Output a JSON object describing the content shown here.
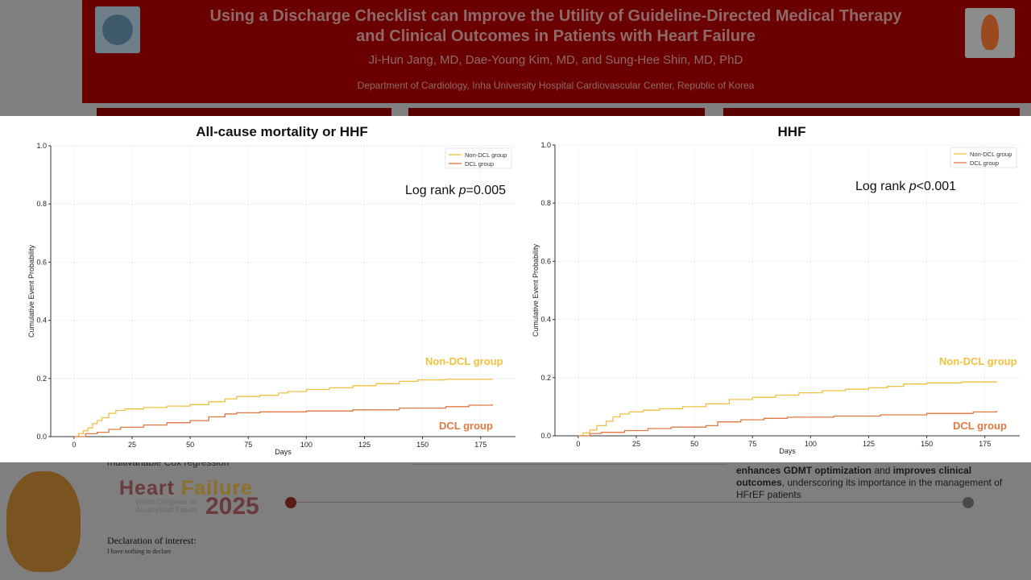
{
  "poster": {
    "title_line1": "Using a Discharge Checklist can Improve the Utility of Guideline-Directed Medical Therapy",
    "title_line2": "and Clinical Outcomes in Patients with Heart Failure",
    "authors": "Ji-Hun Jang, MD, Dae-Young Kim, MD,  and Sung-Hee Shin, MD, PhD",
    "department": "Department of Cardiology, Inha University Hospital Cardiovascular Center, Republic of Korea",
    "left_fragment": "multivariable Cox regression",
    "conclusion_b1": "enhances GDMT optimization",
    "conclusion_t1": " and ",
    "conclusion_b2": "improves clinical outcomes",
    "conclusion_t2": ", underscoring its importance in the management of HFrEF patients",
    "logo_word1": "Heart ",
    "logo_word2": "Failure",
    "logo_year": "2025",
    "logo_sub1": "World Congress on",
    "logo_sub2": "Acute Heart Failure",
    "declaration_title": "Declaration of interest:",
    "declaration_text": "I have nothing to declare",
    "colors": {
      "header": "#6b0000",
      "non_dcl": "#f0c040",
      "dcl": "#e07a40"
    }
  },
  "chart_data": [
    {
      "type": "line",
      "title": "All-cause mortality or HHF",
      "xlabel": "Days",
      "ylabel": "Cumulative Event Probability",
      "xlim": [
        -10,
        190
      ],
      "ylim": [
        0,
        1.0
      ],
      "xticks": [
        "0",
        "25",
        "50",
        "75",
        "100",
        "125",
        "150",
        "175"
      ],
      "yticks": [
        "0.0",
        "0.2",
        "0.4",
        "0.6",
        "0.8",
        "1.0"
      ],
      "grid": true,
      "legend": "top-right",
      "annotation_prefix": "Log rank ",
      "annotation_p": "p",
      "annotation_value": "=0.005",
      "series": [
        {
          "name": "Non-DCL group",
          "label": "Non-DCL group",
          "color": "#f0c040",
          "points": [
            [
              0,
              0
            ],
            [
              2,
              0.01
            ],
            [
              4,
              0.02
            ],
            [
              6,
              0.03
            ],
            [
              8,
              0.045
            ],
            [
              10,
              0.055
            ],
            [
              12,
              0.065
            ],
            [
              15,
              0.08
            ],
            [
              18,
              0.09
            ],
            [
              22,
              0.095
            ],
            [
              30,
              0.1
            ],
            [
              40,
              0.105
            ],
            [
              50,
              0.11
            ],
            [
              58,
              0.12
            ],
            [
              65,
              0.13
            ],
            [
              70,
              0.138
            ],
            [
              80,
              0.142
            ],
            [
              88,
              0.15
            ],
            [
              92,
              0.155
            ],
            [
              100,
              0.162
            ],
            [
              110,
              0.168
            ],
            [
              120,
              0.175
            ],
            [
              130,
              0.182
            ],
            [
              140,
              0.19
            ],
            [
              148,
              0.195
            ],
            [
              160,
              0.197
            ],
            [
              180,
              0.198
            ]
          ]
        },
        {
          "name": "DCL group",
          "label": "DCL group",
          "color": "#e07a40",
          "points": [
            [
              0,
              0
            ],
            [
              5,
              0.01
            ],
            [
              10,
              0.015
            ],
            [
              15,
              0.025
            ],
            [
              20,
              0.032
            ],
            [
              30,
              0.04
            ],
            [
              40,
              0.048
            ],
            [
              50,
              0.055
            ],
            [
              58,
              0.068
            ],
            [
              65,
              0.078
            ],
            [
              70,
              0.082
            ],
            [
              80,
              0.085
            ],
            [
              100,
              0.088
            ],
            [
              120,
              0.092
            ],
            [
              140,
              0.098
            ],
            [
              160,
              0.103
            ],
            [
              170,
              0.108
            ],
            [
              180,
              0.112
            ]
          ]
        }
      ]
    },
    {
      "type": "line",
      "title": "HHF",
      "xlabel": "Days",
      "ylabel": "Cumulative Event Probability",
      "xlim": [
        -10,
        190
      ],
      "ylim": [
        0,
        1.0
      ],
      "xticks": [
        "0",
        "25",
        "50",
        "75",
        "100",
        "125",
        "150",
        "175"
      ],
      "yticks": [
        "0.0",
        "0.2",
        "0.4",
        "0.6",
        "0.8",
        "1.0"
      ],
      "grid": true,
      "legend": "top-right",
      "annotation_prefix": "Log rank ",
      "annotation_p": "p",
      "annotation_value": "<0.001",
      "series": [
        {
          "name": "Non-DCL group",
          "label": "Non-DCL group",
          "color": "#f0c040",
          "points": [
            [
              0,
              0
            ],
            [
              2,
              0.01
            ],
            [
              5,
              0.02
            ],
            [
              8,
              0.035
            ],
            [
              12,
              0.05
            ],
            [
              15,
              0.065
            ],
            [
              18,
              0.075
            ],
            [
              22,
              0.082
            ],
            [
              28,
              0.088
            ],
            [
              35,
              0.093
            ],
            [
              45,
              0.1
            ],
            [
              55,
              0.11
            ],
            [
              65,
              0.125
            ],
            [
              75,
              0.132
            ],
            [
              85,
              0.14
            ],
            [
              95,
              0.148
            ],
            [
              105,
              0.155
            ],
            [
              115,
              0.16
            ],
            [
              125,
              0.165
            ],
            [
              133,
              0.17
            ],
            [
              140,
              0.178
            ],
            [
              150,
              0.182
            ],
            [
              165,
              0.185
            ],
            [
              180,
              0.186
            ]
          ]
        },
        {
          "name": "DCL group",
          "label": "DCL group",
          "color": "#e07a40",
          "points": [
            [
              0,
              0
            ],
            [
              5,
              0.008
            ],
            [
              10,
              0.012
            ],
            [
              20,
              0.018
            ],
            [
              30,
              0.025
            ],
            [
              40,
              0.03
            ],
            [
              55,
              0.035
            ],
            [
              60,
              0.048
            ],
            [
              70,
              0.055
            ],
            [
              80,
              0.06
            ],
            [
              90,
              0.064
            ],
            [
              110,
              0.068
            ],
            [
              130,
              0.072
            ],
            [
              150,
              0.077
            ],
            [
              170,
              0.082
            ],
            [
              180,
              0.086
            ]
          ]
        }
      ]
    }
  ]
}
